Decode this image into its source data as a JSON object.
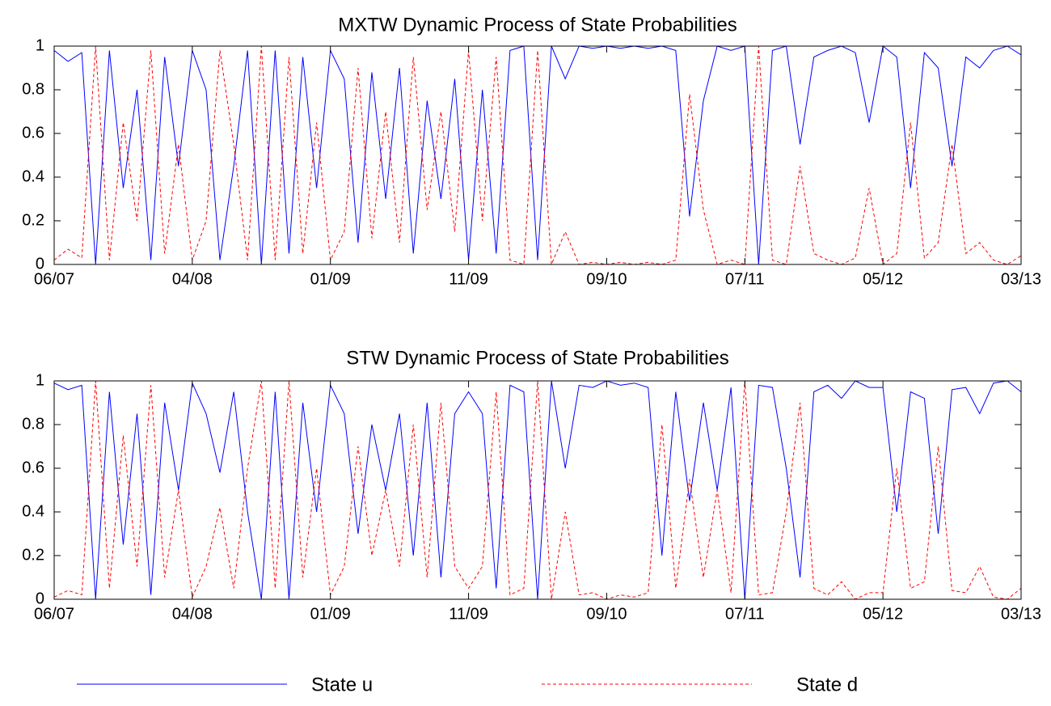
{
  "chart_data": [
    {
      "type": "line",
      "title": "MXTW Dynamic Process of State Probabilities",
      "x": [
        0,
        1,
        2,
        3,
        4,
        5,
        6,
        7,
        8,
        9,
        10,
        11,
        12,
        13,
        14,
        15,
        16,
        17,
        18,
        19,
        20,
        21,
        22,
        23,
        24,
        25,
        26,
        27,
        28,
        29,
        30,
        31,
        32,
        33,
        34,
        35,
        36,
        37,
        38,
        39,
        40,
        41,
        42,
        43,
        44,
        45,
        46,
        47,
        48,
        49,
        50,
        51,
        52,
        53,
        54,
        55,
        56,
        57,
        58,
        59,
        60,
        61,
        62,
        63,
        64,
        65,
        66,
        67,
        68,
        69,
        70
      ],
      "xlim": [
        0,
        70
      ],
      "xticks": [
        {
          "value": 0,
          "label": "06/07"
        },
        {
          "value": 10,
          "label": "04/08"
        },
        {
          "value": 20,
          "label": "01/09"
        },
        {
          "value": 30,
          "label": "11/09"
        },
        {
          "value": 40,
          "label": "09/10"
        },
        {
          "value": 50,
          "label": "07/11"
        },
        {
          "value": 60,
          "label": "05/12"
        },
        {
          "value": 70,
          "label": "03/13"
        }
      ],
      "ylim": [
        0,
        1
      ],
      "yticks": [
        0,
        0.2,
        0.4,
        0.6,
        0.8,
        1
      ],
      "series": [
        {
          "name": "State u",
          "color": "#0000ff",
          "dashed": false,
          "values": [
            0.98,
            0.93,
            0.97,
            0,
            0.98,
            0.35,
            0.8,
            0.02,
            0.95,
            0.45,
            0.98,
            0.8,
            0.02,
            0.45,
            0.98,
            0,
            0.98,
            0.05,
            0.95,
            0.35,
            0.98,
            0.85,
            0.1,
            0.88,
            0.3,
            0.9,
            0.05,
            0.75,
            0.3,
            0.85,
            0.02,
            0.8,
            0.05,
            0.98,
            1,
            0.02,
            1,
            0.85,
            1,
            0.99,
            1,
            0.99,
            1,
            0.99,
            1,
            0.98,
            0.22,
            0.75,
            1,
            0.98,
            1,
            0,
            0.98,
            1,
            0.55,
            0.95,
            0.98,
            1,
            0.97,
            0.65,
            1,
            0.95,
            0.35,
            0.97,
            0.9,
            0.45,
            0.95,
            0.9,
            0.98,
            1,
            0.96
          ]
        },
        {
          "name": "State d",
          "color": "#ff0000",
          "dashed": true,
          "values": [
            0.02,
            0.07,
            0.03,
            1,
            0.02,
            0.65,
            0.2,
            0.98,
            0.05,
            0.55,
            0.02,
            0.2,
            0.98,
            0.55,
            0.02,
            1,
            0.02,
            0.95,
            0.05,
            0.65,
            0.02,
            0.15,
            0.9,
            0.12,
            0.7,
            0.1,
            0.95,
            0.25,
            0.7,
            0.15,
            0.98,
            0.2,
            0.95,
            0.02,
            0,
            0.98,
            0,
            0.15,
            0,
            0.01,
            0,
            0.01,
            0,
            0.01,
            0,
            0.02,
            0.78,
            0.25,
            0,
            0.02,
            0,
            1,
            0.02,
            0,
            0.45,
            0.05,
            0.02,
            0,
            0.03,
            0.35,
            0,
            0.05,
            0.65,
            0.03,
            0.1,
            0.55,
            0.05,
            0.1,
            0.02,
            0,
            0.04
          ]
        }
      ]
    },
    {
      "type": "line",
      "title": "STW Dynamic Process of State Probabilities",
      "x": [
        0,
        1,
        2,
        3,
        4,
        5,
        6,
        7,
        8,
        9,
        10,
        11,
        12,
        13,
        14,
        15,
        16,
        17,
        18,
        19,
        20,
        21,
        22,
        23,
        24,
        25,
        26,
        27,
        28,
        29,
        30,
        31,
        32,
        33,
        34,
        35,
        36,
        37,
        38,
        39,
        40,
        41,
        42,
        43,
        44,
        45,
        46,
        47,
        48,
        49,
        50,
        51,
        52,
        53,
        54,
        55,
        56,
        57,
        58,
        59,
        60,
        61,
        62,
        63,
        64,
        65,
        66,
        67,
        68,
        69,
        70
      ],
      "xlim": [
        0,
        70
      ],
      "xticks": [
        {
          "value": 0,
          "label": "06/07"
        },
        {
          "value": 10,
          "label": "04/08"
        },
        {
          "value": 20,
          "label": "01/09"
        },
        {
          "value": 30,
          "label": "11/09"
        },
        {
          "value": 40,
          "label": "09/10"
        },
        {
          "value": 50,
          "label": "07/11"
        },
        {
          "value": 60,
          "label": "05/12"
        },
        {
          "value": 70,
          "label": "03/13"
        }
      ],
      "ylim": [
        0,
        1
      ],
      "yticks": [
        0,
        0.2,
        0.4,
        0.6,
        0.8,
        1
      ],
      "series": [
        {
          "name": "State u",
          "color": "#0000ff",
          "dashed": false,
          "values": [
            0.99,
            0.96,
            0.98,
            0,
            0.95,
            0.25,
            0.85,
            0.02,
            0.9,
            0.5,
            0.99,
            0.85,
            0.58,
            0.95,
            0.4,
            0,
            0.95,
            0,
            0.9,
            0.4,
            0.98,
            0.85,
            0.3,
            0.8,
            0.5,
            0.85,
            0.2,
            0.9,
            0.1,
            0.85,
            0.95,
            0.85,
            0.05,
            0.98,
            0.95,
            0,
            1,
            0.6,
            0.98,
            0.97,
            1,
            0.98,
            0.99,
            0.97,
            0.2,
            0.95,
            0.45,
            0.9,
            0.5,
            0.97,
            0,
            0.98,
            0.97,
            0.6,
            0.1,
            0.95,
            0.98,
            0.92,
            1,
            0.97,
            0.97,
            0.4,
            0.95,
            0.92,
            0.3,
            0.96,
            0.97,
            0.85,
            0.99,
            1,
            0.95
          ]
        },
        {
          "name": "State d",
          "color": "#ff0000",
          "dashed": true,
          "values": [
            0.01,
            0.04,
            0.02,
            1,
            0.05,
            0.75,
            0.15,
            0.98,
            0.1,
            0.5,
            0.01,
            0.15,
            0.42,
            0.05,
            0.6,
            1,
            0.05,
            1,
            0.1,
            0.6,
            0.02,
            0.15,
            0.7,
            0.2,
            0.5,
            0.15,
            0.8,
            0.1,
            0.9,
            0.15,
            0.05,
            0.15,
            0.95,
            0.02,
            0.05,
            1,
            0,
            0.4,
            0.02,
            0.03,
            0,
            0.02,
            0.01,
            0.03,
            0.8,
            0.05,
            0.55,
            0.1,
            0.5,
            0.03,
            1,
            0.02,
            0.03,
            0.4,
            0.9,
            0.05,
            0.02,
            0.08,
            0,
            0.03,
            0.03,
            0.6,
            0.05,
            0.08,
            0.7,
            0.04,
            0.03,
            0.15,
            0.01,
            0,
            0.05
          ]
        }
      ]
    }
  ]
}
